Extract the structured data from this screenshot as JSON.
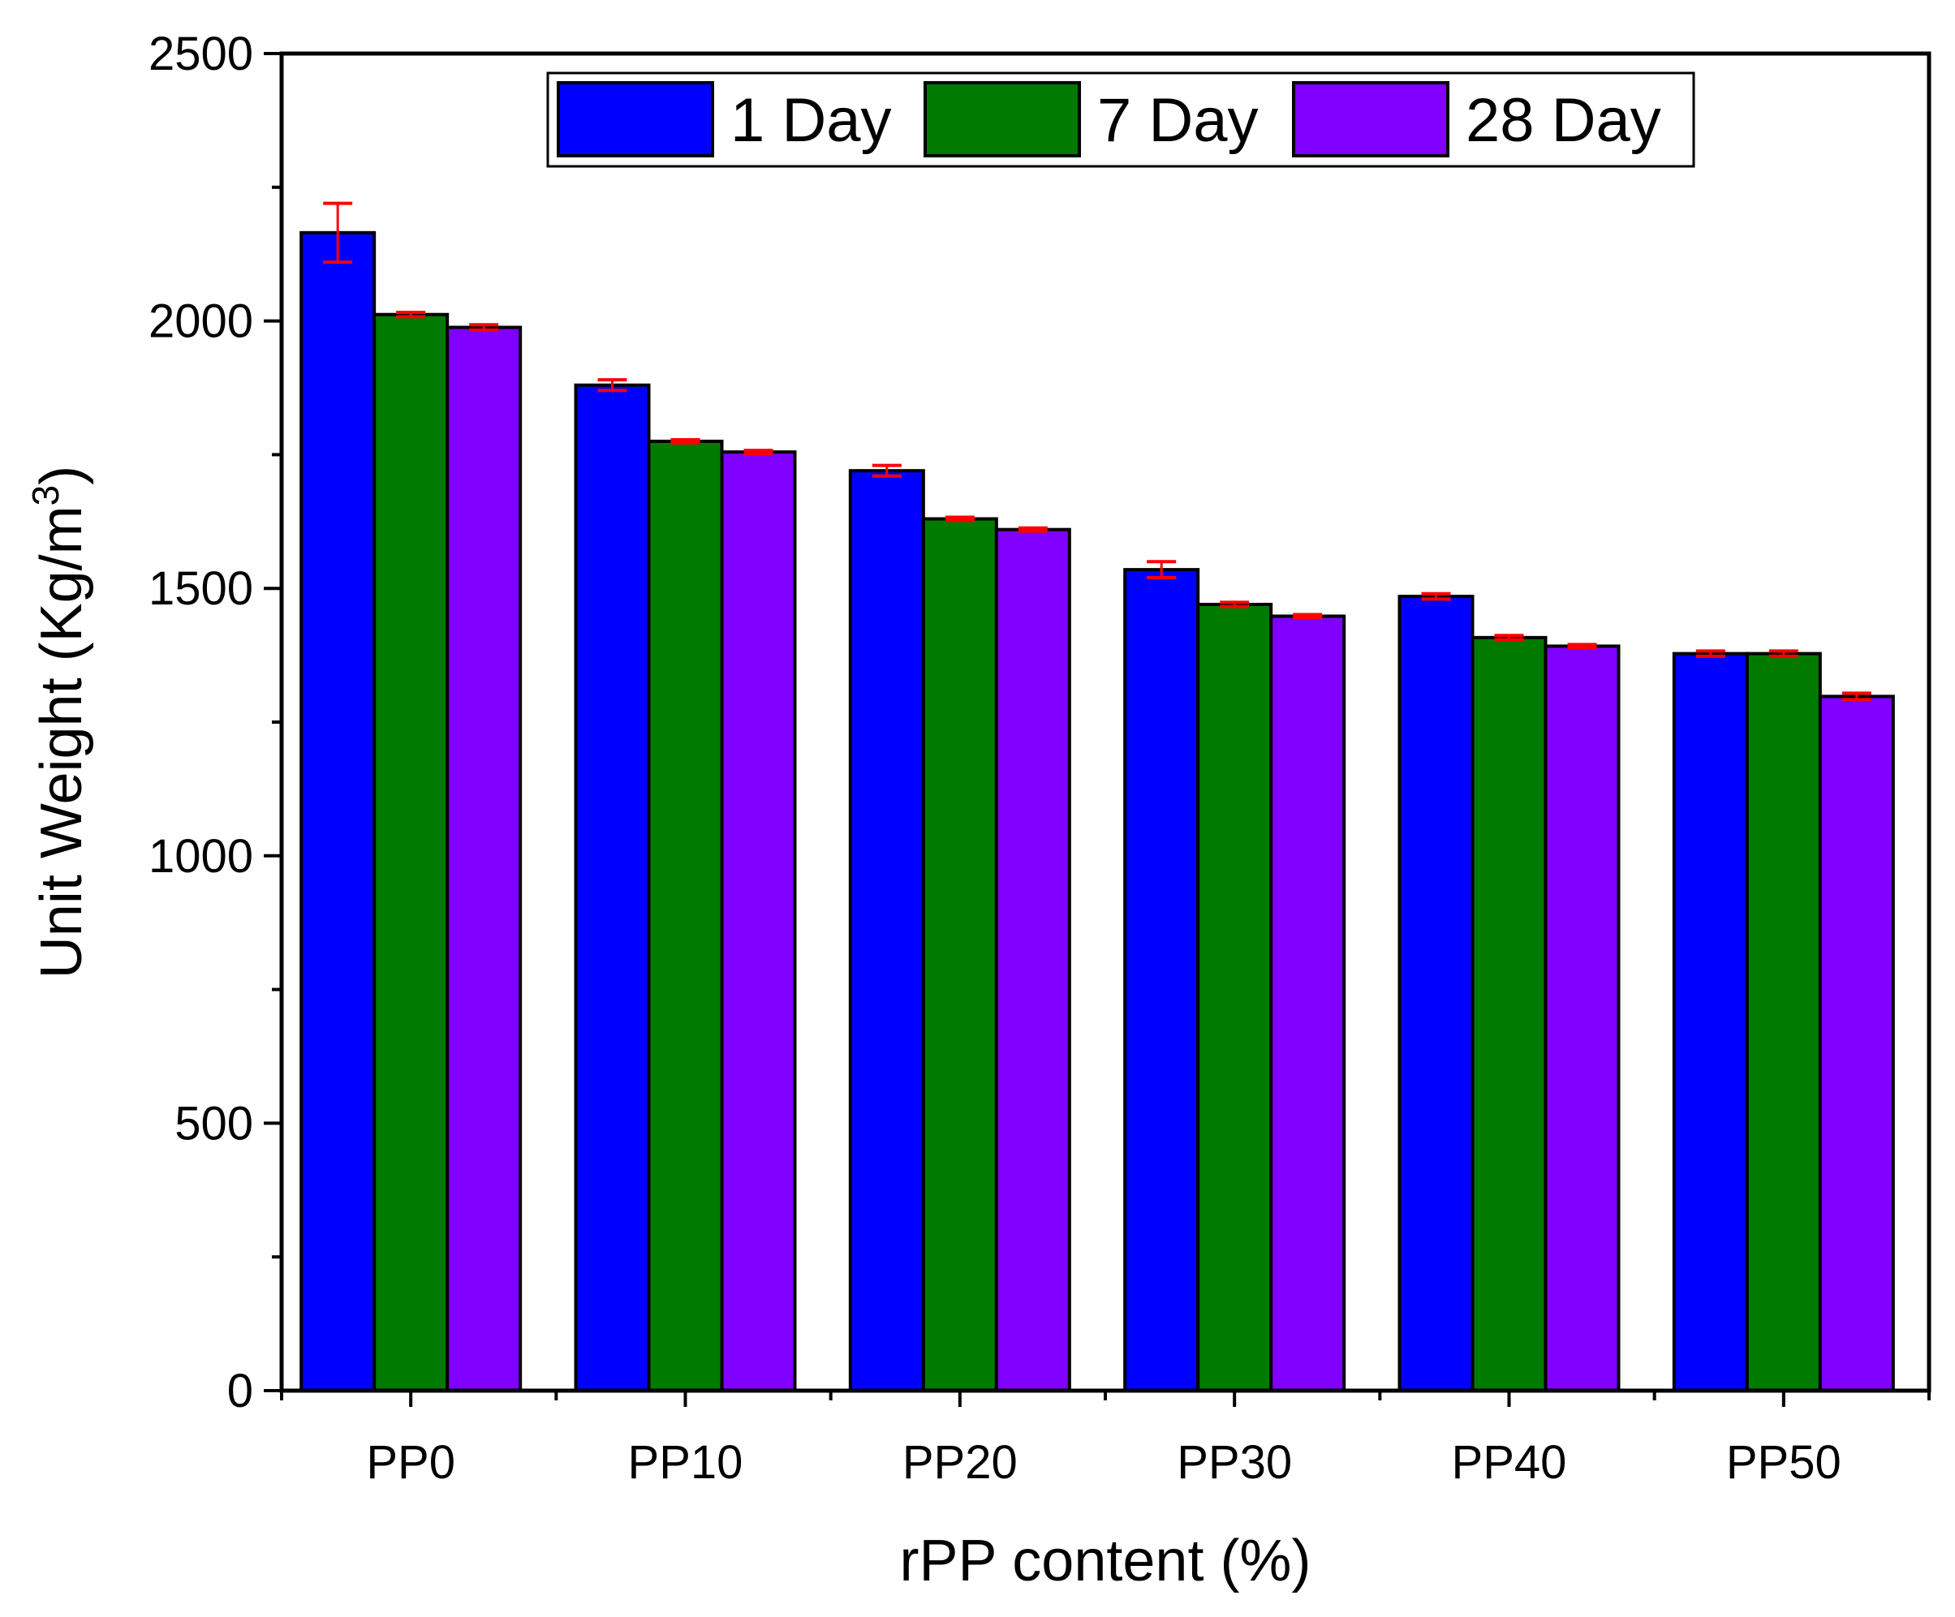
{
  "chart_data": {
    "type": "bar",
    "title": "",
    "xlabel": "rPP content (%)",
    "ylabel_main": "Unit Weight (Kg/m",
    "ylabel_sup": "3",
    "ylabel_close": ")",
    "ylim": [
      0,
      2500
    ],
    "yticks": [
      0,
      500,
      1000,
      1500,
      2000,
      2500
    ],
    "categories": [
      "PP0",
      "PP10",
      "PP20",
      "PP30",
      "PP40",
      "PP50"
    ],
    "legend_position": "top-center",
    "series": [
      {
        "name": "1 Day",
        "color": "#0000ff",
        "values": [
          2165,
          1880,
          1720,
          1535,
          1485,
          1378
        ],
        "errors": [
          55,
          10,
          10,
          15,
          5,
          5
        ]
      },
      {
        "name": "7 Day",
        "color": "#007a00",
        "values": [
          2012,
          1775,
          1630,
          1470,
          1408,
          1378
        ],
        "errors": [
          4,
          3,
          3,
          4,
          4,
          5
        ]
      },
      {
        "name": "28 Day",
        "color": "#7f00ff",
        "values": [
          1988,
          1755,
          1610,
          1448,
          1392,
          1298
        ],
        "errors": [
          5,
          3,
          3,
          3,
          3,
          6
        ]
      }
    ],
    "error_bar_color": "#ff0000"
  }
}
